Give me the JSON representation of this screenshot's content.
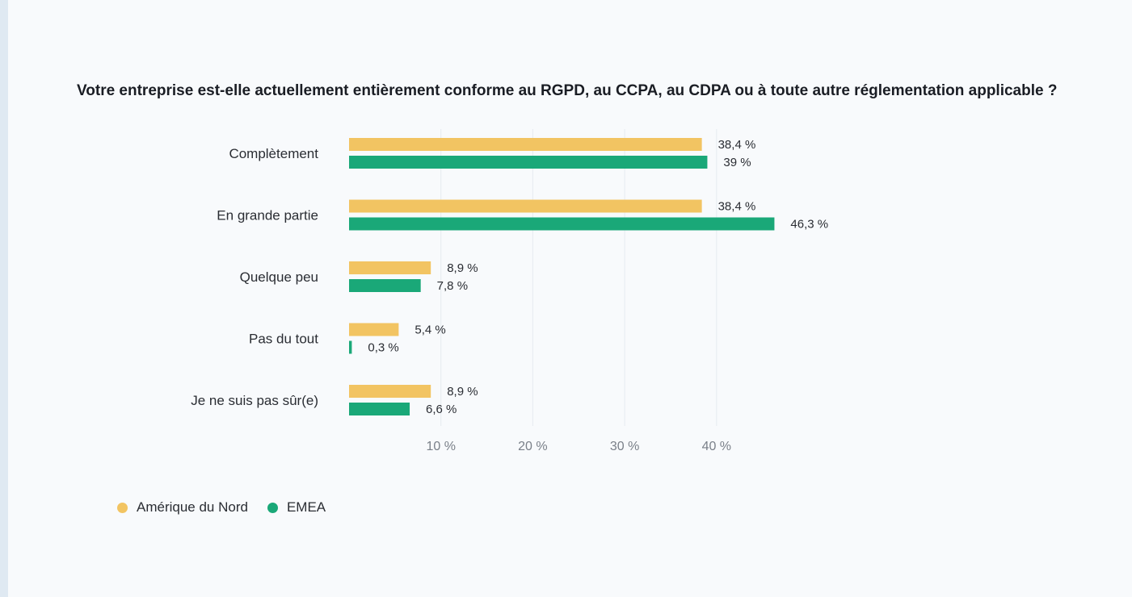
{
  "colors": {
    "north_america": "#f2c462",
    "emea": "#1aa878",
    "tick_text": "#7a8089",
    "label_text": "#2a2d33",
    "grid": "#e6ebf0"
  },
  "chart_data": {
    "type": "bar",
    "orientation": "horizontal",
    "title": "Votre entreprise est-elle actuellement entièrement conforme au RGPD, au CCPA, au CDPA ou à toute autre réglementation applicable ?",
    "categories": [
      "Complètement",
      "En grande partie",
      "Quelque peu",
      "Pas du tout",
      "Je ne suis pas sûr(e)"
    ],
    "series": [
      {
        "name": "Amérique du Nord",
        "color": "#f2c462",
        "values": [
          38.4,
          38.4,
          8.9,
          5.4,
          8.9
        ],
        "labels": [
          "38,4 %",
          "38,4 %",
          "8,9 %",
          "5,4 %",
          "8,9 %"
        ]
      },
      {
        "name": "EMEA",
        "color": "#1aa878",
        "values": [
          39,
          46.3,
          7.8,
          0.3,
          6.6
        ],
        "labels": [
          "39 %",
          "46,3 %",
          "7,8 %",
          "0,3 %",
          "6,6 %"
        ]
      }
    ],
    "xlim": [
      0,
      50
    ],
    "xticks": [
      10,
      20,
      30,
      40
    ],
    "xtick_labels": [
      "10 %",
      "20 %",
      "30 %",
      "40 %"
    ],
    "grid": true,
    "legend_position": "bottom-left"
  }
}
